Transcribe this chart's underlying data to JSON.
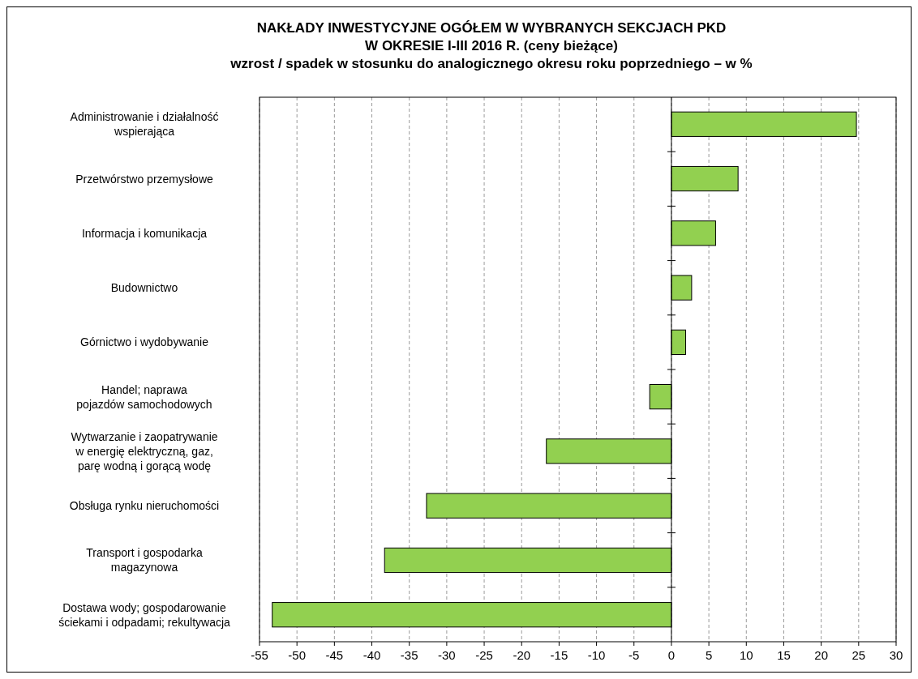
{
  "chart_data": {
    "type": "bar",
    "orientation": "horizontal",
    "title": "NAKŁADY INWESTYCYJNE OGÓŁEM W WYBRANYCH SEKCJACH PKD\nW OKRESIE I-III 2016 R. (ceny bieżące)",
    "subtitle": "wzrost / spadek w stosunku do analogicznego okresu roku poprzedniego – w %",
    "categories": [
      "Administrowanie i działalność\nwspierająca",
      "Przetwórstwo przemysłowe",
      "Informacja i komunikacja",
      "Budownictwo",
      "Górnictwo i wydobywanie",
      "Handel; naprawa\npojazdów samochodowych",
      "Wytwarzanie i zaopatrywanie\nw energię elektryczną, gaz,\nparę wodną i gorącą wodę",
      "Obsługa rynku nieruchomości",
      "Transport i gospodarka\nmagazynowa",
      "Dostawa wody; gospodarowanie\nściekami i odpadami; rekultywacja"
    ],
    "values": [
      24.7,
      8.9,
      5.9,
      2.7,
      1.9,
      -2.9,
      -16.7,
      -32.7,
      -38.3,
      -53.3
    ],
    "color": "#92d050",
    "xlim": [
      -55,
      30
    ],
    "xticks": [
      -55,
      -50,
      -45,
      -40,
      -35,
      -30,
      -25,
      -20,
      -15,
      -10,
      -5,
      0,
      5,
      10,
      15,
      20,
      25,
      30
    ],
    "grid": "x"
  }
}
